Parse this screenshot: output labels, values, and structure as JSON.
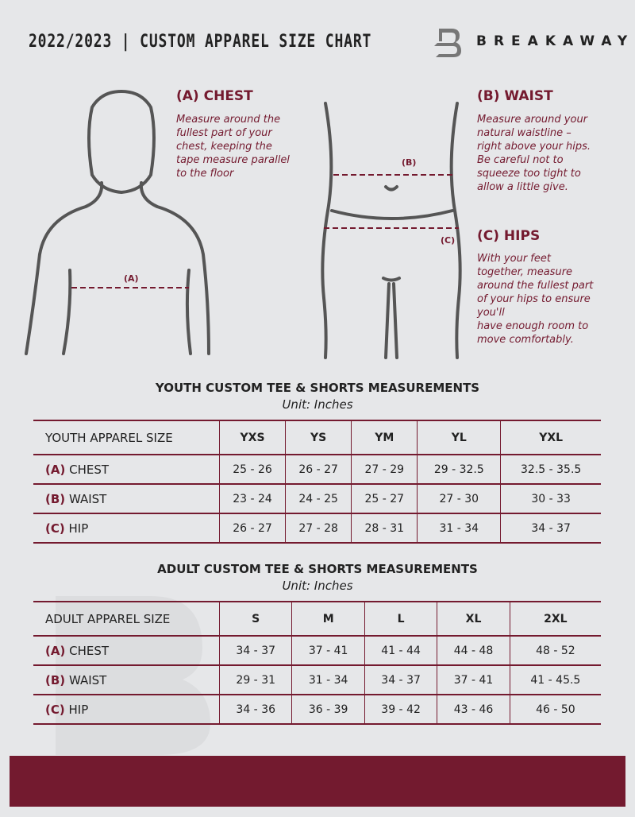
{
  "header": {
    "title": "2022/2023  |  CUSTOM APPAREL SIZE CHART",
    "brand": "BREAKAWAY"
  },
  "colors": {
    "accent": "#741a2f",
    "background": "#e6e7e9"
  },
  "guides": {
    "chest": {
      "heading": "(A) CHEST",
      "lines": [
        "Measure around the",
        "fullest part of your",
        "chest, keeping the",
        "tape measure parallel",
        "to the floor"
      ],
      "tag": "(A)"
    },
    "waist": {
      "heading": "(B) WAIST",
      "lines": [
        "Measure around your",
        "natural waistline –",
        "right above your hips.",
        "Be careful not to",
        "squeeze too tight to",
        "allow a little give."
      ],
      "tag": "(B)"
    },
    "hips": {
      "heading": "(C) HIPS",
      "lines": [
        "With your feet",
        "together, measure",
        "around the fullest part",
        "of your hips to ensure",
        "you'll",
        "have enough room to",
        "move comfortably."
      ],
      "tag": "(C)"
    }
  },
  "youth": {
    "title": "YOUTH CUSTOM TEE & SHORTS MEASUREMENTS",
    "unit": "Unit: Inches",
    "header": [
      "YOUTH APPAREL SIZE",
      "YXS",
      "YS",
      "YM",
      "YL",
      "YXL"
    ],
    "rows": [
      {
        "code": "(A)",
        "name": "CHEST",
        "values": [
          "25 - 26",
          "26 - 27",
          "27 - 29",
          "29 - 32.5",
          "32.5 - 35.5"
        ]
      },
      {
        "code": "(B)",
        "name": "WAIST",
        "values": [
          "23 - 24",
          "24 - 25",
          "25 - 27",
          "27 - 30",
          "30 - 33"
        ]
      },
      {
        "code": "(C)",
        "name": "HIP",
        "values": [
          "26 - 27",
          "27 - 28",
          "28 - 31",
          "31 - 34",
          "34 - 37"
        ]
      }
    ]
  },
  "adult": {
    "title": "ADULT CUSTOM TEE & SHORTS MEASUREMENTS",
    "unit": "Unit: Inches",
    "header": [
      "ADULT APPAREL SIZE",
      "S",
      "M",
      "L",
      "XL",
      "2XL"
    ],
    "rows": [
      {
        "code": "(A)",
        "name": "CHEST",
        "values": [
          "34 - 37",
          "37 - 41",
          "41 - 44",
          "44 - 48",
          "48 - 52"
        ]
      },
      {
        "code": "(B)",
        "name": "WAIST",
        "values": [
          "29 - 31",
          "31 - 34",
          "34 - 37",
          "37 - 41",
          "41 - 45.5"
        ]
      },
      {
        "code": "(C)",
        "name": "HIP",
        "values": [
          "34 - 36",
          "36 - 39",
          "39 - 42",
          "43 - 46",
          "46 - 50"
        ]
      }
    ]
  }
}
